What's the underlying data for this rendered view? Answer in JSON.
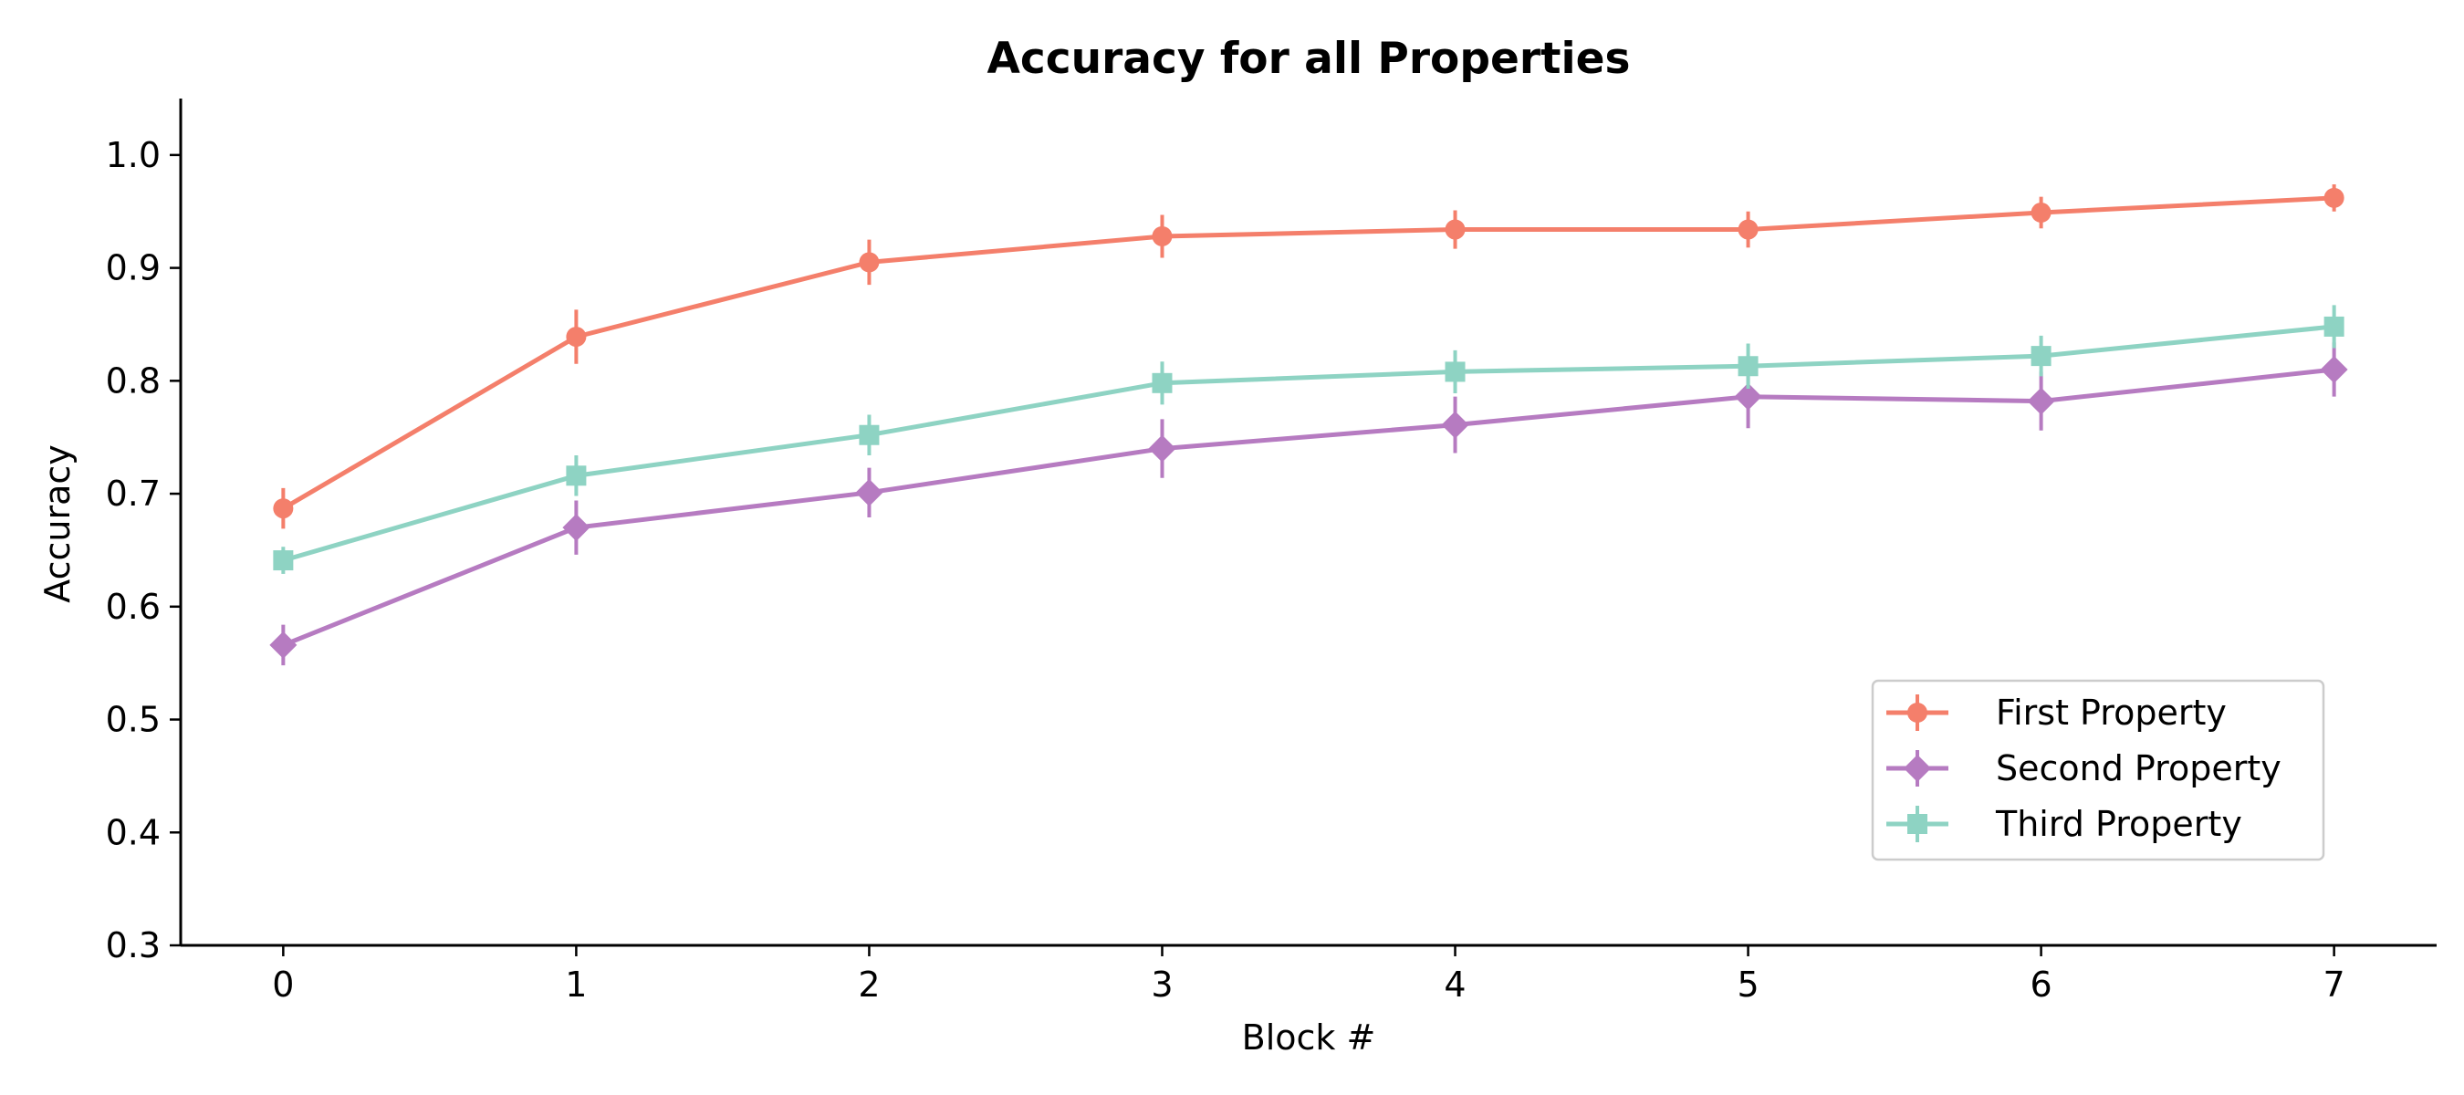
{
  "chart_data": {
    "type": "line",
    "title": "Accuracy for all Properties",
    "xlabel": "Block #",
    "ylabel": "Accuracy",
    "x": [
      0,
      1,
      2,
      3,
      4,
      5,
      6,
      7
    ],
    "xticks": [
      "0",
      "1",
      "2",
      "3",
      "4",
      "5",
      "6",
      "7"
    ],
    "xlim": [
      -0.35,
      7.35
    ],
    "ylim": [
      0.3,
      1.05
    ],
    "yticks": [
      "0.3",
      "0.4",
      "0.5",
      "0.6",
      "0.7",
      "0.8",
      "0.9",
      "1.0"
    ],
    "grid": false,
    "legend_position": "lower-right",
    "series": [
      {
        "name": "First Property",
        "color": "#f47f6b",
        "marker": "circle",
        "values": [
          0.687,
          0.839,
          0.905,
          0.928,
          0.934,
          0.934,
          0.949,
          0.962
        ],
        "errors": [
          0.018,
          0.024,
          0.02,
          0.019,
          0.017,
          0.016,
          0.014,
          0.012
        ]
      },
      {
        "name": "Second Property",
        "color": "#b67bc1",
        "marker": "diamond",
        "values": [
          0.566,
          0.67,
          0.701,
          0.74,
          0.761,
          0.786,
          0.782,
          0.81
        ],
        "errors": [
          0.018,
          0.024,
          0.022,
          0.026,
          0.025,
          0.028,
          0.026,
          0.024
        ]
      },
      {
        "name": "Third Property",
        "color": "#8ed3c3",
        "marker": "square",
        "values": [
          0.641,
          0.716,
          0.752,
          0.798,
          0.808,
          0.813,
          0.822,
          0.848
        ],
        "errors": [
          0.012,
          0.018,
          0.018,
          0.019,
          0.019,
          0.02,
          0.018,
          0.019
        ]
      }
    ]
  }
}
